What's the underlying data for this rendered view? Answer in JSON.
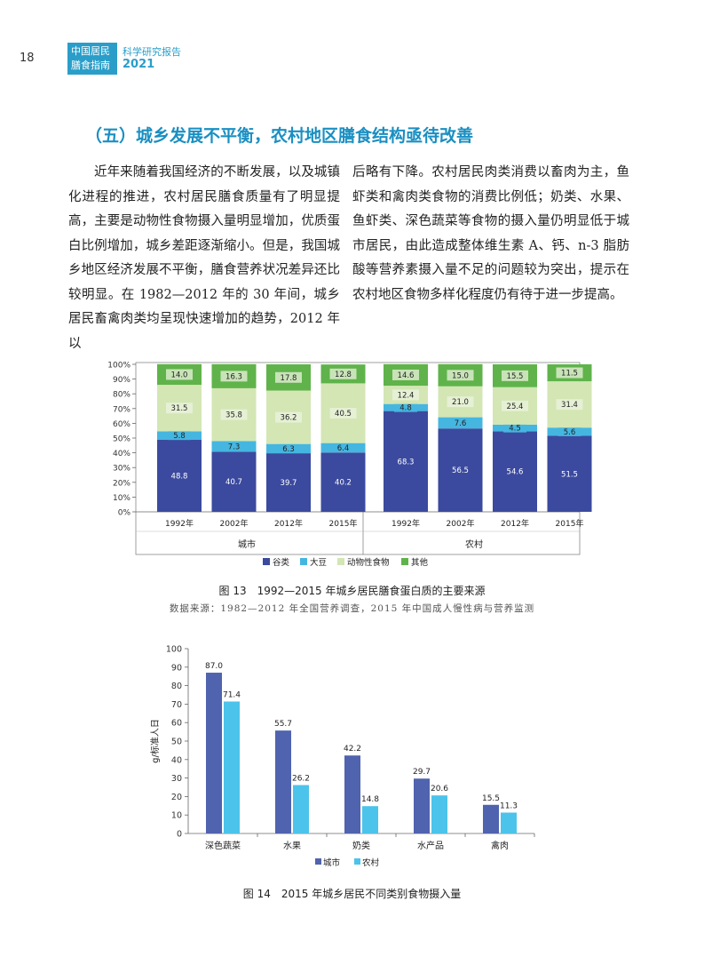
{
  "header": {
    "page_number": "18",
    "guide_title_line1": "中国居民",
    "guide_title_line2": "膳食指南",
    "report_label": "科学研究报告",
    "report_year": "2021"
  },
  "section": {
    "heading": "（五）城乡发展不平衡，农村地区膳食结构亟待改善"
  },
  "body": {
    "left_column": "近年来随着我国经济的不断发展，以及城镇化进程的推进，农村居民膳食质量有了明显提高，主要是动物性食物摄入量明显增加，优质蛋白比例增加，城乡差距逐渐缩小。但是，我国城乡地区经济发展不平衡，膳食营养状况差异还比较明显。在 1982—2012 年的 30 年间，城乡居民畜禽肉类均呈现快速增加的趋势，2012 年以",
    "right_column": "后略有下降。农村居民肉类消费以畜肉为主，鱼虾类和禽肉类食物的消费比例低；奶类、水果、鱼虾类、深色蔬菜等食物的摄入量仍明显低于城市居民，由此造成整体维生素 A、钙、n-3 脂肪酸等营养素摄入量不足的问题较为突出，提示在农村地区食物多样化程度仍有待于进一步提高。"
  },
  "figure13": {
    "caption": "图 13　1992—2015 年城乡居民膳食蛋白质的主要来源",
    "source": "数据来源：1982—2012 年全国营养调查，2015 年中国成人慢性病与营养监测"
  },
  "figure14": {
    "caption": "图 14　2015 年城乡居民不同类别食物摄入量"
  },
  "chart_data": [
    {
      "type": "bar",
      "stacked": true,
      "title": "1992—2015 年城乡居民膳食蛋白质的主要来源",
      "y_tick_labels": [
        "0%",
        "10%",
        "20%",
        "30%",
        "40%",
        "50%",
        "60%",
        "70%",
        "80%",
        "90%",
        "100%"
      ],
      "ylim": [
        0,
        100
      ],
      "groups": [
        {
          "name": "城市",
          "categories": [
            "1992年",
            "2002年",
            "2012年",
            "2015年"
          ]
        },
        {
          "name": "农村",
          "categories": [
            "1992年",
            "2002年",
            "2012年",
            "2015年"
          ]
        }
      ],
      "series": [
        {
          "name": "谷类",
          "color": "#3b4a9e",
          "values": [
            48.8,
            40.7,
            39.7,
            40.2,
            68.3,
            56.5,
            54.6,
            51.5
          ]
        },
        {
          "name": "大豆",
          "color": "#45b6e0",
          "values": [
            5.8,
            7.3,
            6.3,
            6.4,
            4.8,
            7.6,
            4.5,
            5.6
          ]
        },
        {
          "name": "动物性食物",
          "color": "#d3e6b4",
          "values": [
            31.5,
            35.8,
            36.2,
            40.5,
            12.4,
            21.0,
            25.4,
            31.4
          ]
        },
        {
          "name": "其他",
          "color": "#5fb34a",
          "values": [
            14.0,
            16.3,
            17.8,
            12.8,
            14.6,
            15.0,
            15.5,
            11.5
          ]
        }
      ],
      "value_labels": [
        [
          "48.8",
          "40.7",
          "39.7",
          "40.2",
          "68.3",
          "56.5",
          "54.6",
          "51.5"
        ],
        [
          "5.8",
          "7.3",
          "6.3",
          "6.4",
          "4.8",
          "7.6",
          "4.5",
          "5.6"
        ],
        [
          "31.5",
          "35.8",
          "36.2",
          "40.5",
          "12.4",
          "21.0",
          "25.4",
          "31.4"
        ],
        [
          "14.0",
          "16.3",
          "17.8",
          "12.8",
          "14.6",
          "15.0",
          "15.5",
          "11.5"
        ]
      ],
      "legend_position": "bottom"
    },
    {
      "type": "bar",
      "title": "2015 年城乡居民不同类别食物摄入量",
      "categories": [
        "深色蔬菜",
        "水果",
        "奶类",
        "水产品",
        "禽肉"
      ],
      "ylabel": "g/标准人日",
      "ylim": [
        0,
        100
      ],
      "y_tick_labels": [
        "0",
        "10",
        "20",
        "30",
        "40",
        "50",
        "60",
        "70",
        "80",
        "90",
        "100"
      ],
      "series": [
        {
          "name": "城市",
          "color": "#4f63ae",
          "values": [
            87.0,
            55.7,
            42.2,
            29.7,
            15.5
          ],
          "labels": [
            "87.0",
            "55.7",
            "42.2",
            "29.7",
            "15.5"
          ]
        },
        {
          "name": "农村",
          "color": "#4cc3ea",
          "values": [
            71.4,
            26.2,
            14.8,
            20.6,
            11.3
          ],
          "labels": [
            "71.4",
            "26.2",
            "14.8",
            "20.6",
            "11.3"
          ]
        }
      ],
      "legend_position": "bottom"
    }
  ]
}
